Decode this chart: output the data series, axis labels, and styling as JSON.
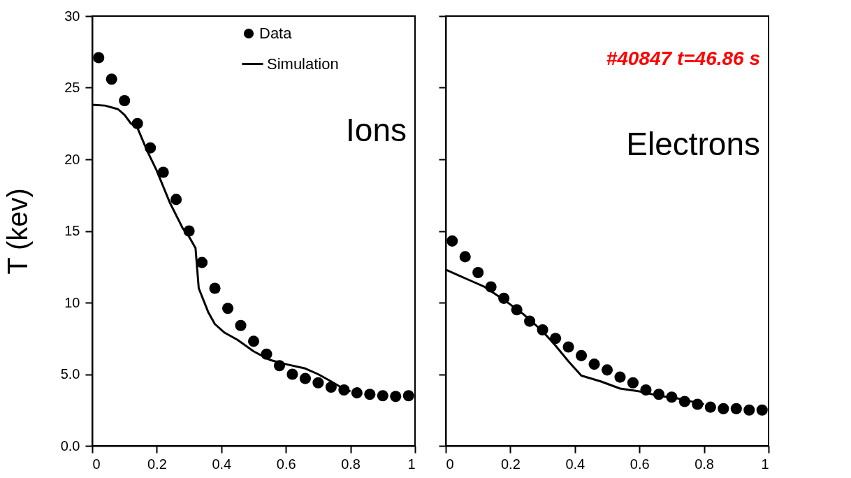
{
  "chart_data": [
    {
      "type": "scatter",
      "ylabel": "T (kev)",
      "annotations": [
        "Ions"
      ],
      "xlim": [
        0,
        1
      ],
      "ylim": [
        0,
        30
      ],
      "xticks": [
        0,
        0.2,
        0.4,
        0.6,
        0.8,
        1
      ],
      "yticks": [
        {
          "value": 0,
          "label": "0.0"
        },
        {
          "value": 5,
          "label": "5.0"
        },
        10,
        15,
        20,
        25,
        30
      ],
      "grid": false,
      "legend": "top right",
      "series": [
        {
          "name": "Data",
          "type": "scatter",
          "marker": "circle",
          "color": "#000000",
          "x": [
            0.02,
            0.06,
            0.1,
            0.14,
            0.18,
            0.22,
            0.26,
            0.3,
            0.34,
            0.38,
            0.42,
            0.46,
            0.5,
            0.54,
            0.58,
            0.62,
            0.66,
            0.7,
            0.74,
            0.78,
            0.82,
            0.86,
            0.9,
            0.94,
            0.98
          ],
          "values": [
            27.1,
            25.6,
            24.1,
            22.5,
            20.8,
            19.1,
            17.2,
            15.0,
            12.8,
            11.0,
            9.6,
            8.4,
            7.3,
            6.4,
            5.6,
            5.0,
            4.7,
            4.4,
            4.1,
            3.9,
            3.7,
            3.6,
            3.5,
            3.45,
            3.5
          ]
        },
        {
          "name": "Simulation",
          "type": "line",
          "line_style": "solid",
          "color": "#000000",
          "x": [
            0,
            0.04,
            0.08,
            0.1,
            0.12,
            0.14,
            0.17,
            0.2,
            0.24,
            0.28,
            0.3,
            0.32,
            0.33,
            0.36,
            0.38,
            0.41,
            0.45,
            0.5,
            0.55,
            0.6,
            0.66,
            0.7,
            0.74,
            0.77,
            0.8
          ],
          "values": [
            23.8,
            23.75,
            23.5,
            23.1,
            22.5,
            22.2,
            20.6,
            19.2,
            17.0,
            15.2,
            14.6,
            13.8,
            11.0,
            9.3,
            8.5,
            7.9,
            7.4,
            6.6,
            6.0,
            5.7,
            5.4,
            5.0,
            4.5,
            4.1,
            3.8
          ]
        }
      ]
    },
    {
      "type": "scatter",
      "annotations": [
        "#40847 t=46.86 s",
        "Electrons"
      ],
      "xlim": [
        0,
        1
      ],
      "ylim": [
        0,
        30
      ],
      "xticks": [
        0,
        0.2,
        0.4,
        0.6,
        0.8,
        1
      ],
      "yticks": [
        0,
        5,
        10,
        15,
        20,
        25,
        30
      ],
      "tick_labels": "x",
      "grid": false,
      "series": [
        {
          "type": "scatter",
          "marker": "circle",
          "color": "#000000",
          "x": [
            0.02,
            0.06,
            0.1,
            0.14,
            0.18,
            0.22,
            0.26,
            0.3,
            0.34,
            0.38,
            0.42,
            0.46,
            0.5,
            0.54,
            0.58,
            0.62,
            0.66,
            0.7,
            0.74,
            0.78,
            0.82,
            0.86,
            0.9,
            0.94,
            0.98
          ],
          "values": [
            14.3,
            13.2,
            12.1,
            11.1,
            10.3,
            9.5,
            8.7,
            8.1,
            7.5,
            6.9,
            6.3,
            5.7,
            5.3,
            4.8,
            4.4,
            3.9,
            3.6,
            3.4,
            3.1,
            2.9,
            2.7,
            2.6,
            2.6,
            2.5,
            2.5
          ]
        },
        {
          "type": "line",
          "line_style": "solid",
          "color": "#000000",
          "x": [
            0,
            0.04,
            0.08,
            0.12,
            0.18,
            0.24,
            0.3,
            0.34,
            0.38,
            0.42,
            0.48,
            0.54,
            0.6,
            0.66,
            0.72,
            0.8
          ],
          "values": [
            12.3,
            11.9,
            11.5,
            11.1,
            10.2,
            9.2,
            8.0,
            7.0,
            5.9,
            4.9,
            4.5,
            4.0,
            3.8,
            3.5,
            3.3,
            2.9
          ]
        }
      ]
    }
  ]
}
